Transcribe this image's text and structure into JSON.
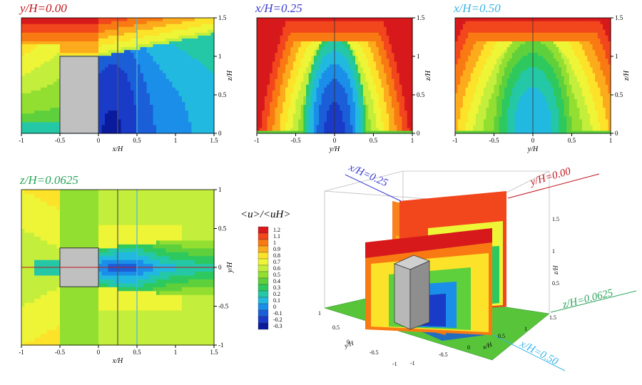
{
  "chart_data": [
    {
      "type": "heatmap",
      "title": "y/H=0.00",
      "title_color": "#c0141c",
      "xlabel": "x/H",
      "ylabel": "z/H",
      "xlim": [
        -1,
        1.5
      ],
      "ylim": [
        0,
        1.5
      ],
      "x_ticks": [
        "-1",
        "-0.5",
        "0",
        "0.5",
        "1",
        "1.5"
      ],
      "y_ticks": [
        "0",
        "0.5",
        "1",
        "1.5"
      ],
      "building": {
        "x": [
          -0.5,
          0
        ],
        "y": [
          0,
          1
        ]
      },
      "lines": [
        {
          "at": 0.25,
          "color": "#555555"
        },
        {
          "at": 0.5,
          "color": "#44b8e0"
        }
      ]
    },
    {
      "type": "heatmap",
      "title": "x/H=0.25",
      "title_color": "#3a3ad0",
      "xlabel": "y/H",
      "ylabel": "z/H",
      "xlim": [
        -1,
        1
      ],
      "ylim": [
        0,
        1.5
      ],
      "x_ticks": [
        "-1",
        "-0.5",
        "0",
        "0.5",
        "1"
      ],
      "y_ticks": [
        "0",
        "0.5",
        "1",
        "1.5"
      ]
    },
    {
      "type": "heatmap",
      "title": "x/H=0.50",
      "title_color": "#3ab4e6",
      "xlabel": "y/H",
      "ylabel": "z/H",
      "xlim": [
        -1,
        1
      ],
      "ylim": [
        0,
        1.5
      ],
      "x_ticks": [
        "-1",
        "-0.5",
        "0",
        "0.5",
        "1"
      ],
      "y_ticks": [
        "0",
        "0.5",
        "1",
        "1.5"
      ]
    },
    {
      "type": "heatmap",
      "title": "z/H=0.0625",
      "title_color": "#2aa45a",
      "xlabel": "x/H",
      "ylabel": "y/H",
      "xlim": [
        -1,
        1.5
      ],
      "ylim": [
        -1,
        1
      ],
      "x_ticks": [
        "-1",
        "-0.5",
        "0",
        "0.5",
        "1",
        "1.5"
      ],
      "y_ticks": [
        "-1",
        "-0.5",
        "0",
        "0.5",
        "1"
      ],
      "building": {
        "x": [
          -0.5,
          0
        ],
        "y": [
          -0.25,
          0.25
        ]
      }
    }
  ],
  "colorbar": {
    "label": "<u>/<uH>",
    "levels": [
      "1.2",
      "1.1",
      "1",
      "0.9",
      "0.8",
      "0.7",
      "0.6",
      "0.5",
      "0.4",
      "0.3",
      "0.2",
      "0.1",
      "0",
      "-0.1",
      "-0.2",
      "-0.3"
    ],
    "colors": [
      "#d7191c",
      "#f2461c",
      "#f97a12",
      "#fbab1c",
      "#fde22a",
      "#eef436",
      "#c4ee3c",
      "#92df32",
      "#5ed03c",
      "#2ec95e",
      "#24c7a6",
      "#22b9e0",
      "#1a8ee8",
      "#1a5ed8",
      "#1a3ac8",
      "#0a1a9c"
    ]
  },
  "view3d": {
    "labels": {
      "x025": "x/H=0.25",
      "y000": "y/H=0.00",
      "z0625": "z/H=0.0625",
      "x050": "x/H=0.50"
    },
    "axis_labels": {
      "x": "x/H",
      "y": "y/H",
      "z": "z/H"
    },
    "z_ticks": [
      "1.5",
      "1",
      "0.5"
    ],
    "z_end_tick": "1.5",
    "y_ticks": [
      "1",
      "0.5",
      "0",
      "-0.5",
      "-1"
    ],
    "x_ticks": [
      "-1",
      "-0.5",
      "0",
      "0.5",
      "1"
    ]
  }
}
